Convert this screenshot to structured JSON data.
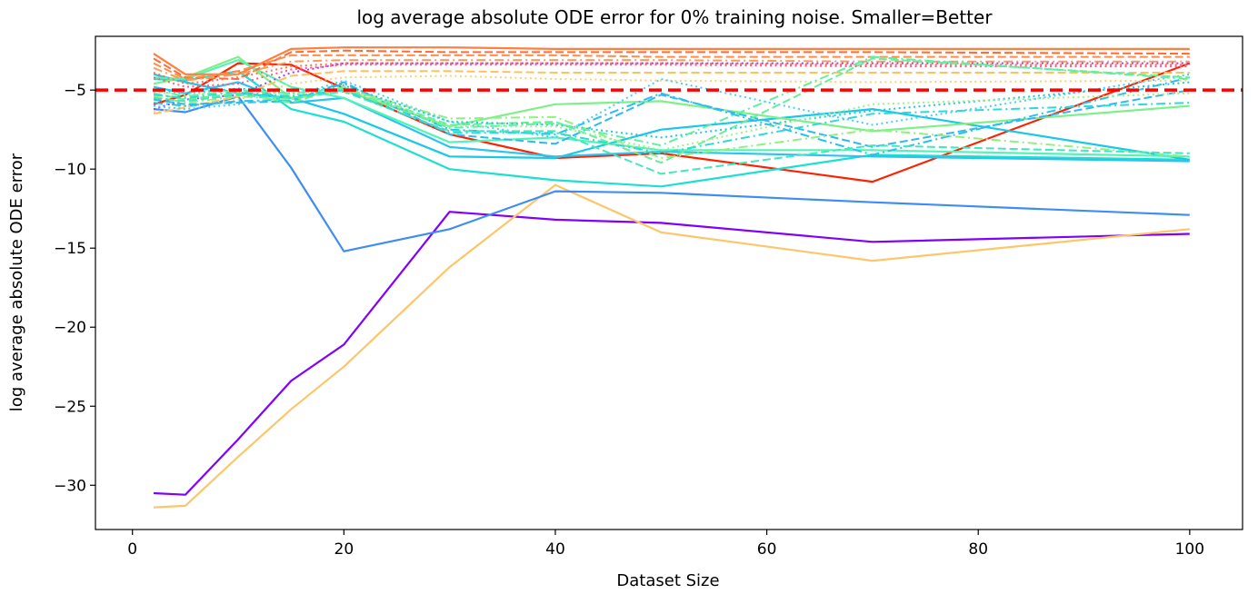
{
  "chart_data": {
    "type": "line",
    "title": "log average absolute ODE error for 0% training noise. Smaller=Better",
    "xlabel": "Dataset Size",
    "ylabel": "log average absolute ODE error",
    "xlim": [
      -3.5,
      105
    ],
    "ylim": [
      -32.8,
      -1.6
    ],
    "xticks": [
      0,
      20,
      40,
      60,
      80,
      100
    ],
    "yticks": [
      -5,
      -10,
      -15,
      -20,
      -25,
      -30
    ],
    "xtick_labels": [
      "0",
      "20",
      "40",
      "60",
      "80",
      "100"
    ],
    "ytick_labels": [
      "−5",
      "−10",
      "−15",
      "−20",
      "−25",
      "−30"
    ],
    "grid": false,
    "legend": "none",
    "threshold": {
      "y": -5,
      "color": "#ff0000",
      "style": "dashed"
    },
    "x": [
      2,
      5,
      10,
      15,
      20,
      30,
      40,
      50,
      70,
      100
    ],
    "series": [
      {
        "color": "#8000ff",
        "dash": "solid",
        "values": [
          -30.5,
          -30.6,
          -27.1,
          -23.4,
          -21.1,
          -12.7,
          -13.2,
          -13.4,
          -14.6,
          -14.1
        ]
      },
      {
        "color": "#fcc66a",
        "dash": "solid",
        "values": [
          -31.4,
          -31.3,
          -28.2,
          -25.2,
          -22.5,
          -16.2,
          -11.0,
          -14.0,
          -15.8,
          -13.8
        ]
      },
      {
        "color": "#3e8df4",
        "dash": "solid",
        "values": [
          -6.2,
          -6.4,
          -5.4,
          -9.9,
          -15.2,
          -13.8,
          -11.4,
          -11.5,
          -12.1,
          -12.9
        ]
      },
      {
        "color": "#ff2000",
        "dash": "solid",
        "values": [
          -5.9,
          -5.3,
          -3.3,
          -3.4,
          -4.9,
          -7.8,
          -9.3,
          -9.0,
          -10.8,
          -3.3
        ]
      },
      {
        "color": "#1ae0cf",
        "dash": "solid",
        "values": [
          -4.3,
          -4.4,
          -3.8,
          -6.2,
          -7.0,
          -10.0,
          -10.7,
          -11.1,
          -9.1,
          -9.4
        ]
      },
      {
        "color": "#18c8e8",
        "dash": "solid",
        "values": [
          -4.0,
          -4.5,
          -5.2,
          -5.5,
          -6.5,
          -9.2,
          -9.3,
          -7.5,
          -6.2,
          -9.4
        ]
      },
      {
        "color": "#2ac4f0",
        "dash": "solid",
        "values": [
          -4.8,
          -5.2,
          -4.5,
          -5.8,
          -5.5,
          -8.6,
          -9.2,
          -8.9,
          -9.2,
          -9.5
        ]
      },
      {
        "color": "#7ef08a",
        "dash": "solid",
        "values": [
          -4.6,
          -4.2,
          -2.9,
          -5.5,
          -5.0,
          -7.3,
          -5.9,
          -5.7,
          -7.6,
          -6.0
        ]
      },
      {
        "color": "#50f5b4",
        "dash": "solid",
        "values": [
          -4.2,
          -4.3,
          -3.1,
          -4.8,
          -5.5,
          -8.3,
          -8.0,
          -8.8,
          -8.8,
          -9.2
        ]
      },
      {
        "color": "#ff7f3f",
        "dash": "solid",
        "values": [
          -2.7,
          -4.0,
          -4.0,
          -2.4,
          -2.3,
          -2.3,
          -2.4,
          -2.4,
          -2.4,
          -2.4
        ]
      },
      {
        "color": "#ff6a36",
        "dash": "dashed",
        "values": [
          -3.0,
          -4.2,
          -4.3,
          -2.6,
          -2.5,
          -2.6,
          -2.6,
          -2.6,
          -2.6,
          -2.7
        ]
      },
      {
        "color": "#ff8c4a",
        "dash": "dashed",
        "values": [
          -3.3,
          -4.3,
          -3.8,
          -2.8,
          -2.8,
          -2.8,
          -2.8,
          -2.9,
          -2.9,
          -2.9
        ]
      },
      {
        "color": "#ff9a55",
        "dash": "dashdot",
        "values": [
          -3.6,
          -4.4,
          -4.0,
          -3.2,
          -3.1,
          -3.1,
          -3.1,
          -3.1,
          -3.2,
          -3.2
        ]
      },
      {
        "color": "#ff7055",
        "dash": "dotted",
        "values": [
          -3.9,
          -4.6,
          -4.2,
          -3.5,
          -3.3,
          -3.3,
          -3.3,
          -3.3,
          -3.4,
          -3.4
        ]
      },
      {
        "color": "#ff5a8a",
        "dash": "dotted",
        "values": [
          -4.2,
          -4.8,
          -4.6,
          -3.7,
          -3.4,
          -3.4,
          -3.4,
          -3.4,
          -3.5,
          -3.5
        ]
      },
      {
        "color": "#a040ff",
        "dash": "dotted",
        "values": [
          -6.2,
          -5.6,
          -5.3,
          -3.9,
          -3.3,
          -3.3,
          -3.3,
          -3.3,
          -3.3,
          -3.3
        ]
      },
      {
        "color": "#ffc060",
        "dash": "dashed",
        "values": [
          -6.5,
          -6.1,
          -5.4,
          -4.1,
          -3.8,
          -3.8,
          -3.9,
          -3.9,
          -3.9,
          -3.9
        ]
      },
      {
        "color": "#ffd070",
        "dash": "dotted",
        "values": [
          -6.4,
          -6.0,
          -5.6,
          -4.6,
          -4.2,
          -4.1,
          -4.3,
          -4.4,
          -4.5,
          -4.4
        ]
      },
      {
        "color": "#30b8f0",
        "dash": "dashed",
        "values": [
          -5.6,
          -5.9,
          -5.8,
          -5.7,
          -4.5,
          -7.8,
          -8.4,
          -5.3,
          -8.6,
          -5.0
        ]
      },
      {
        "color": "#28c0f0",
        "dash": "dashdot",
        "values": [
          -5.8,
          -6.0,
          -5.7,
          -5.6,
          -4.6,
          -7.5,
          -7.8,
          -5.2,
          -9.1,
          -4.2
        ]
      },
      {
        "color": "#40d0ff",
        "dash": "dotted",
        "values": [
          -6.0,
          -6.2,
          -5.9,
          -5.4,
          -4.4,
          -7.0,
          -8.0,
          -4.3,
          -7.2,
          -4.0
        ]
      },
      {
        "color": "#66ee99",
        "dash": "dashed",
        "values": [
          -5.2,
          -5.6,
          -5.2,
          -5.8,
          -4.8,
          -7.2,
          -7.0,
          -9.6,
          -3.0,
          -4.2
        ]
      },
      {
        "color": "#90f080",
        "dash": "dashdot",
        "values": [
          -5.4,
          -5.8,
          -5.4,
          -5.6,
          -4.9,
          -6.8,
          -6.7,
          -9.3,
          -7.5,
          -9.2
        ]
      },
      {
        "color": "#40e8c0",
        "dash": "dashed",
        "values": [
          -5.5,
          -5.7,
          -5.3,
          -5.5,
          -5.1,
          -7.6,
          -7.6,
          -10.3,
          -8.5,
          -9.0
        ]
      },
      {
        "color": "#30d8d8",
        "dash": "dashdot",
        "values": [
          -5.3,
          -5.5,
          -5.1,
          -5.4,
          -5.0,
          -7.7,
          -7.7,
          -9.0,
          -6.5,
          -5.8
        ]
      },
      {
        "color": "#20c8e0",
        "dash": "dotted",
        "values": [
          -5.0,
          -5.2,
          -4.9,
          -5.2,
          -4.7,
          -7.0,
          -7.2,
          -8.0,
          -6.3,
          -4.5
        ]
      },
      {
        "color": "#a0f088",
        "dash": "dotted",
        "values": [
          -5.1,
          -5.3,
          -5.0,
          -5.3,
          -4.8,
          -7.3,
          -7.3,
          -8.8,
          -5.9,
          -5.2
        ]
      },
      {
        "color": "#5ff0a0",
        "dash": "dashdot",
        "values": [
          -5.0,
          -5.4,
          -5.0,
          -5.2,
          -4.9,
          -7.4,
          -7.1,
          -8.5,
          -2.9,
          -4.3
        ]
      }
    ]
  }
}
